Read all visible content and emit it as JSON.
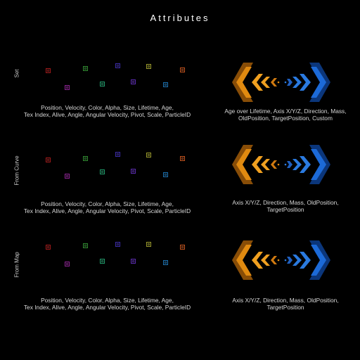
{
  "title": "Attributes",
  "rows": [
    {
      "label": "Set",
      "left_lines": [
        "Position, Velocity, Color, Alpha, Size, Lifetime, Age,",
        "Tex Index, Alive, Angle, Angular Velocity, Pivot, Scale, ParticleID"
      ],
      "right_lines": [
        "Age over Lifetime, Axis X/Y/Z, Direction, Mass,",
        "OldPosition, TargetPosition, Custom"
      ]
    },
    {
      "label": "From Curve",
      "left_lines": [
        "Position, Velocity, Color, Alpha, Size, Lifetime, Age,",
        "Tex Index, Alive, Angle, Angular Velocity, Pivot, Scale, ParticleID"
      ],
      "right_lines": [
        "Axis X/Y/Z, Direction, Mass, OldPosition,",
        "TargetPosition"
      ]
    },
    {
      "label": "From Map",
      "left_lines": [
        "Position, Velocity, Color, Alpha, Size, Lifetime, Age,",
        "Tex Index, Alive, Angle, Angular Velocity, Pivot, Scale, ParticleID"
      ],
      "right_lines": [
        "Axis X/Y/Z, Direction, Mass, OldPosition,",
        "TargetPosition"
      ]
    }
  ],
  "particle_colors": [
    "#a01818",
    "#8a2090",
    "#2e8a2e",
    "#1f9a6a",
    "#3a2aa8",
    "#5a2ab0",
    "#9a9a2a",
    "#1a70b0",
    "#c0501a"
  ],
  "chevron_colors": {
    "left": "#e08a10",
    "right": "#1c6ad8"
  }
}
